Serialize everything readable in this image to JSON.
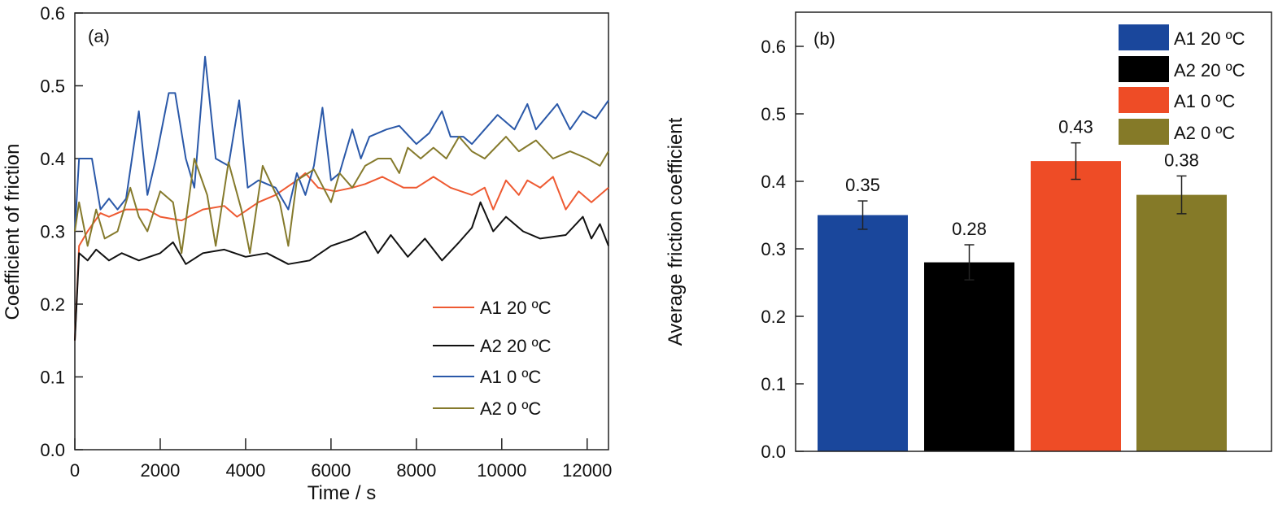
{
  "chart_data": [
    {
      "type": "line",
      "panel_label": "(a)",
      "xlabel": "Time / s",
      "ylabel": "Coefficient of friction",
      "xlim": [
        0,
        12500
      ],
      "ylim": [
        0,
        0.6
      ],
      "xticks": [
        "0",
        "2000",
        "4000",
        "6000",
        "8000",
        "10000",
        "12000"
      ],
      "yticks": [
        "0.0",
        "0.1",
        "0.2",
        "0.3",
        "0.4",
        "0.5",
        "0.6"
      ],
      "legend_placement": "bottom-right",
      "series": [
        {
          "name": "A1 20 ºC",
          "color": "#ee5a32",
          "x": [
            0,
            100,
            300,
            600,
            800,
            1200,
            1700,
            2000,
            2500,
            3000,
            3500,
            3800,
            4300,
            4700,
            5200,
            5400,
            5700,
            6100,
            6500,
            6800,
            7200,
            7700,
            8000,
            8400,
            8800,
            9300,
            9600,
            9800,
            10100,
            10400,
            10600,
            10900,
            11200,
            11500,
            11800,
            12100,
            12500
          ],
          "y": [
            0.15,
            0.28,
            0.3,
            0.325,
            0.32,
            0.33,
            0.33,
            0.32,
            0.315,
            0.33,
            0.335,
            0.32,
            0.34,
            0.35,
            0.37,
            0.38,
            0.36,
            0.355,
            0.36,
            0.365,
            0.375,
            0.36,
            0.36,
            0.375,
            0.36,
            0.35,
            0.36,
            0.33,
            0.37,
            0.35,
            0.37,
            0.36,
            0.375,
            0.33,
            0.355,
            0.34,
            0.36
          ]
        },
        {
          "name": "A2 20 ºC",
          "color": "#111111",
          "x": [
            0,
            100,
            300,
            500,
            800,
            1100,
            1500,
            2000,
            2300,
            2600,
            3000,
            3500,
            4000,
            4500,
            5000,
            5500,
            6000,
            6500,
            6800,
            7100,
            7400,
            7800,
            8200,
            8600,
            9000,
            9300,
            9500,
            9800,
            10100,
            10500,
            10900,
            11500,
            11900,
            12100,
            12300,
            12500
          ],
          "y": [
            0.15,
            0.27,
            0.26,
            0.275,
            0.26,
            0.27,
            0.26,
            0.27,
            0.285,
            0.255,
            0.27,
            0.275,
            0.265,
            0.27,
            0.255,
            0.26,
            0.28,
            0.29,
            0.3,
            0.27,
            0.295,
            0.265,
            0.29,
            0.26,
            0.285,
            0.305,
            0.34,
            0.3,
            0.32,
            0.3,
            0.29,
            0.295,
            0.32,
            0.29,
            0.31,
            0.28
          ]
        },
        {
          "name": "A1 0 ºC",
          "color": "#2a58a8",
          "x": [
            0,
            100,
            400,
            600,
            800,
            1000,
            1200,
            1500,
            1700,
            1900,
            2200,
            2350,
            2600,
            2800,
            3050,
            3300,
            3600,
            3850,
            4050,
            4300,
            4700,
            5000,
            5200,
            5400,
            5600,
            5800,
            6000,
            6200,
            6500,
            6700,
            6900,
            7300,
            7600,
            8000,
            8300,
            8600,
            8800,
            9100,
            9300,
            9600,
            9900,
            10300,
            10600,
            10800,
            11300,
            11600,
            11900,
            12200,
            12500
          ],
          "y": [
            0.3,
            0.4,
            0.4,
            0.33,
            0.345,
            0.33,
            0.345,
            0.465,
            0.35,
            0.4,
            0.49,
            0.49,
            0.4,
            0.36,
            0.54,
            0.4,
            0.39,
            0.48,
            0.36,
            0.37,
            0.36,
            0.33,
            0.38,
            0.35,
            0.39,
            0.47,
            0.37,
            0.38,
            0.44,
            0.4,
            0.43,
            0.44,
            0.445,
            0.42,
            0.435,
            0.465,
            0.43,
            0.43,
            0.42,
            0.44,
            0.46,
            0.44,
            0.475,
            0.44,
            0.475,
            0.44,
            0.465,
            0.455,
            0.48
          ]
        },
        {
          "name": "A2 0 ºC",
          "color": "#857a2c",
          "x": [
            0,
            100,
            300,
            500,
            700,
            1000,
            1300,
            1500,
            1700,
            2000,
            2300,
            2500,
            2800,
            3100,
            3300,
            3600,
            3900,
            4100,
            4400,
            4800,
            5000,
            5200,
            5600,
            6000,
            6200,
            6500,
            6800,
            7100,
            7400,
            7600,
            7800,
            8100,
            8400,
            8700,
            9000,
            9300,
            9600,
            10100,
            10400,
            10800,
            11200,
            11600,
            12000,
            12300,
            12500
          ],
          "y": [
            0.3,
            0.34,
            0.28,
            0.33,
            0.29,
            0.3,
            0.36,
            0.32,
            0.3,
            0.355,
            0.34,
            0.27,
            0.4,
            0.35,
            0.28,
            0.395,
            0.33,
            0.27,
            0.39,
            0.34,
            0.28,
            0.37,
            0.385,
            0.34,
            0.38,
            0.36,
            0.39,
            0.4,
            0.4,
            0.38,
            0.415,
            0.4,
            0.415,
            0.4,
            0.43,
            0.41,
            0.4,
            0.43,
            0.41,
            0.425,
            0.4,
            0.41,
            0.4,
            0.39,
            0.41
          ]
        }
      ]
    },
    {
      "type": "bar",
      "panel_label": "(b)",
      "xlabel": "",
      "ylabel": "Average friction coefficient",
      "ylim": [
        0,
        0.65
      ],
      "yticks": [
        "0.0",
        "0.1",
        "0.2",
        "0.3",
        "0.4",
        "0.5",
        "0.6"
      ],
      "legend_placement": "top-right",
      "categories": [
        "A1 20 ºC",
        "A2 20 ºC",
        "A1 0 ºC",
        "A2 0 ºC"
      ],
      "values": [
        0.35,
        0.28,
        0.43,
        0.38
      ],
      "value_labels": [
        "0.35",
        "0.28",
        "0.43",
        "0.38"
      ],
      "errors": [
        0.021,
        0.026,
        0.027,
        0.028
      ],
      "colors": [
        "#1a479c",
        "#000000",
        "#ee4c26",
        "#857a28"
      ]
    }
  ]
}
